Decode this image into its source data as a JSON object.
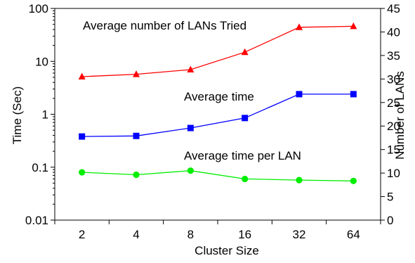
{
  "chart_data": {
    "type": "line",
    "categories": [
      "2",
      "4",
      "8",
      "16",
      "32",
      "64"
    ],
    "xlabel": "Cluster Size",
    "ylabel": "Time (Sec)",
    "y2label": "Number of LANs",
    "y_scale": "log",
    "ylim": [
      0.01,
      100
    ],
    "y_ticks": [
      "0.01",
      "0.1",
      "1",
      "10",
      "100"
    ],
    "y2lim": [
      0,
      45
    ],
    "y2_ticks": [
      "0",
      "5",
      "10",
      "15",
      "20",
      "25",
      "30",
      "35",
      "40",
      "45"
    ],
    "grid": false,
    "series": [
      {
        "name": "Average number of LANs Tried",
        "axis": "right",
        "marker": "triangle",
        "color": "#ff0000",
        "values": [
          30.5,
          31,
          32,
          35.7,
          41,
          41.2
        ]
      },
      {
        "name": "Average time",
        "axis": "left",
        "marker": "square",
        "color": "#0000ff",
        "values": [
          0.38,
          0.39,
          0.55,
          0.85,
          2.4,
          2.4
        ]
      },
      {
        "name": "Average time per LAN",
        "axis": "left",
        "marker": "circle",
        "color": "#00ee00",
        "values": [
          0.08,
          0.072,
          0.086,
          0.06,
          0.057,
          0.055
        ]
      }
    ]
  }
}
